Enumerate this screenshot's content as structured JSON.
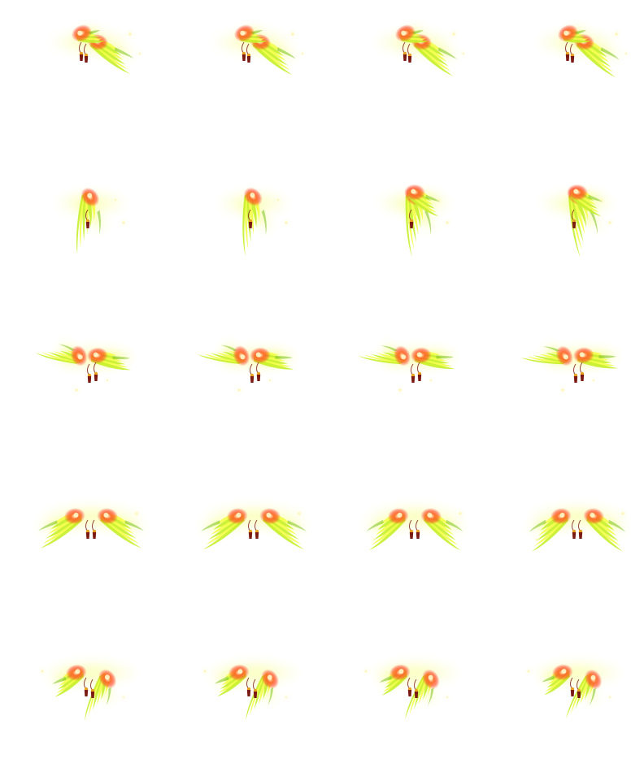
{
  "sheet": {
    "rows": 5,
    "cols": 4,
    "background": "#ffffff"
  },
  "palette": {
    "core": "#ff3b1f",
    "glow": "#ffd23a",
    "feather_light": "#f3ff4a",
    "feather_mid": "#c6ef2b",
    "feather_dark": "#7bc21d",
    "tassel": "#7a1a12",
    "tassel_cap": "#e8a21f",
    "sparkle": "#fff3a0"
  },
  "rows": [
    {
      "pose": "side-right",
      "frames": [
        {
          "icon": "wing-sprite-frame",
          "wing_spread": 0.45,
          "flap": 0.0
        },
        {
          "icon": "wing-sprite-frame",
          "wing_spread": 0.45,
          "flap": 0.15
        },
        {
          "icon": "wing-sprite-frame",
          "wing_spread": 0.45,
          "flap": 0.3
        },
        {
          "icon": "wing-sprite-frame",
          "wing_spread": 0.45,
          "flap": 0.45
        }
      ]
    },
    {
      "pose": "profile-right",
      "frames": [
        {
          "icon": "wing-sprite-frame",
          "wing_spread": 0.2,
          "flap": 0.0
        },
        {
          "icon": "wing-sprite-frame",
          "wing_spread": 0.2,
          "flap": 0.2
        },
        {
          "icon": "wing-sprite-frame",
          "wing_spread": 0.3,
          "flap": 0.4
        },
        {
          "icon": "wing-sprite-frame",
          "wing_spread": 0.3,
          "flap": 0.6
        }
      ]
    },
    {
      "pose": "three-quarter-back",
      "frames": [
        {
          "icon": "wing-sprite-frame",
          "wing_spread": 0.55,
          "flap": 0.0
        },
        {
          "icon": "wing-sprite-frame",
          "wing_spread": 0.55,
          "flap": 0.2
        },
        {
          "icon": "wing-sprite-frame",
          "wing_spread": 0.55,
          "flap": 0.4
        },
        {
          "icon": "wing-sprite-frame",
          "wing_spread": 0.55,
          "flap": 0.6
        }
      ]
    },
    {
      "pose": "back-full",
      "frames": [
        {
          "icon": "wing-sprite-frame",
          "wing_spread": 1.0,
          "flap": 0.0
        },
        {
          "icon": "wing-sprite-frame",
          "wing_spread": 1.0,
          "flap": 0.15
        },
        {
          "icon": "wing-sprite-frame",
          "wing_spread": 0.9,
          "flap": 0.35
        },
        {
          "icon": "wing-sprite-frame",
          "wing_spread": 0.9,
          "flap": 0.5
        }
      ]
    },
    {
      "pose": "three-quarter-front",
      "frames": [
        {
          "icon": "wing-sprite-frame",
          "wing_spread": 0.8,
          "flap": 0.0
        },
        {
          "icon": "wing-sprite-frame",
          "wing_spread": 0.8,
          "flap": 0.2
        },
        {
          "icon": "wing-sprite-frame",
          "wing_spread": 0.7,
          "flap": 0.4
        },
        {
          "icon": "wing-sprite-frame",
          "wing_spread": 0.7,
          "flap": 0.6
        }
      ]
    }
  ]
}
